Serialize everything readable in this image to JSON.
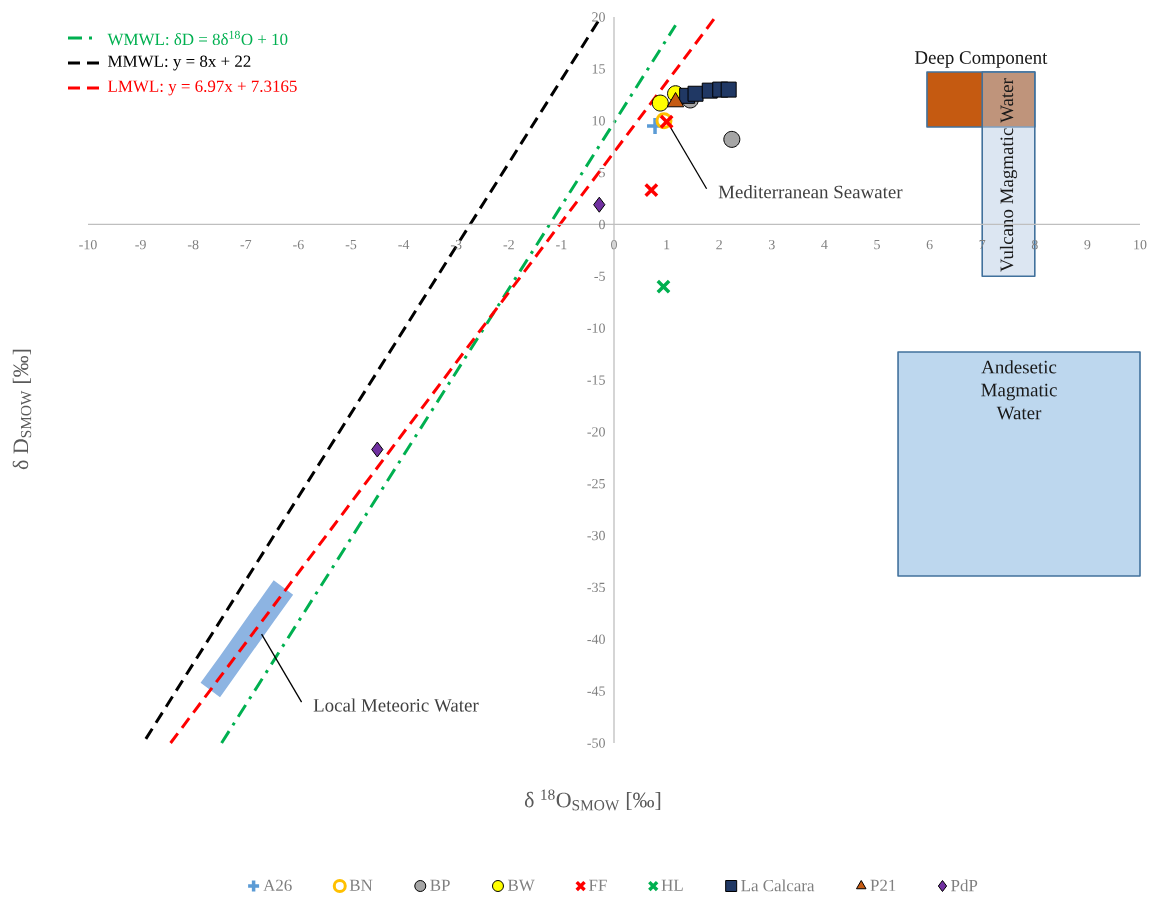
{
  "chart_data": {
    "type": "scatter",
    "xlabel": "δ $^{18}$O$_{SMOW}$ [‰]",
    "ylabel": "δ D$_{SMOW}$ [‰]",
    "xlim": [
      -10,
      10
    ],
    "ylim": [
      -50,
      20
    ],
    "xticks": [
      -10,
      -9,
      -8,
      -7,
      -6,
      -5,
      -4,
      -3,
      -2,
      -1,
      0,
      1,
      2,
      3,
      4,
      5,
      6,
      7,
      8,
      9,
      10
    ],
    "yticks": [
      -50,
      -45,
      -40,
      -35,
      -30,
      -25,
      -20,
      -15,
      -10,
      -5,
      0,
      5,
      10,
      15,
      20
    ],
    "legend": "bottom",
    "series": [
      {
        "name": "A26",
        "marker": "plus",
        "color": "#5b9bd5",
        "x": [
          0.78
        ],
        "values": [
          9.5
        ]
      },
      {
        "name": "BN",
        "marker": "circle-open",
        "color": "#ffc000",
        "x": [
          0.95
        ],
        "values": [
          10.0
        ]
      },
      {
        "name": "BP",
        "marker": "circle",
        "color": "#a5a5a5",
        "x": [
          1.45,
          2.24
        ],
        "values": [
          12.0,
          8.2
        ]
      },
      {
        "name": "BW",
        "marker": "circle",
        "color": "#ffff00",
        "x": [
          0.88,
          1.17
        ],
        "values": [
          11.7,
          12.6
        ]
      },
      {
        "name": "FF",
        "marker": "cross",
        "color": "#ff0000",
        "x": [
          0.71,
          1.0
        ],
        "values": [
          3.3,
          9.9
        ]
      },
      {
        "name": "HL",
        "marker": "cross",
        "color": "#00b050",
        "x": [
          0.94
        ],
        "values": [
          -6.0
        ]
      },
      {
        "name": "La Calcara",
        "marker": "square",
        "color": "#203864",
        "x": [
          1.39,
          1.55,
          1.82,
          2.02,
          2.18
        ],
        "values": [
          12.4,
          12.6,
          12.9,
          13.0,
          13.0
        ]
      },
      {
        "name": "P21",
        "marker": "triangle",
        "color": "#c55a11",
        "x": [
          1.17
        ],
        "values": [
          11.8
        ]
      },
      {
        "name": "PdP",
        "marker": "diamond",
        "color": "#7030a0",
        "x": [
          -0.28,
          -4.5
        ],
        "values": [
          1.9,
          -21.7
        ]
      },
      {
        "name": "WMWL: δD = 8δ$^{18}$O + 10",
        "type": "line",
        "line_style": "dashdot",
        "color": "#00b050",
        "x": [
          -7.46,
          1.17
        ],
        "values": [
          -50,
          19.2
        ]
      },
      {
        "name": "MMWL: y = 8x + 22",
        "type": "line",
        "line_style": "dashed",
        "color": "#000000",
        "x": [
          -8.9,
          -0.25
        ],
        "values": [
          -49.6,
          20
        ]
      },
      {
        "name": "LMWL: y = 6.97x + 7.3165",
        "type": "line",
        "line_style": "dashed",
        "color": "#ff0000",
        "x": [
          -8.43,
          1.93
        ],
        "values": [
          -50,
          20
        ]
      },
      {
        "type": "line",
        "color": "#8db4e2",
        "x": [
          -7.86,
          -7.49,
          -6.47,
          -6.1
        ],
        "values": [
          null,
          null,
          null,
          null
        ],
        "upper": [
          -44.2,
          -41.6,
          -34.3,
          -35.7
        ],
        "lower": [
          -44.2,
          -45.6,
          -38.3,
          -35.7
        ]
      },
      {
        "type": "line",
        "color": "#bdd7ee",
        "x": [
          5.4,
          10
        ],
        "values": [
          null,
          null
        ],
        "upper": [
          -12.3,
          -12.3
        ],
        "lower": [
          -33.9,
          -33.9
        ]
      },
      {
        "type": "line",
        "color": "#c55a11",
        "x": [
          5.95,
          8
        ],
        "values": [
          null,
          null
        ],
        "upper": [
          14.7,
          14.7
        ],
        "lower": [
          9.4,
          9.4
        ]
      },
      {
        "type": "line",
        "color": "#b9cde5",
        "x": [
          7,
          8
        ],
        "values": [
          null,
          null
        ],
        "upper": [
          14.7,
          14.7
        ],
        "lower": [
          -5,
          -5
        ]
      }
    ],
    "annotations": [
      {
        "text": "Deep Component",
        "x": 6.975,
        "y": 14.7
      },
      {
        "text": "Vulcano Magmatic Water",
        "x": 7.5,
        "y": -5
      },
      {
        "text": "Mediterranean Seawater",
        "x": 1.0,
        "y": 10.0
      },
      {
        "text": "Andesetic Magmatic Water",
        "x": 7.7,
        "y": -12.3
      },
      {
        "text": "Local Meteoric Water",
        "x": -6.7,
        "y": -39.5
      }
    ]
  }
}
